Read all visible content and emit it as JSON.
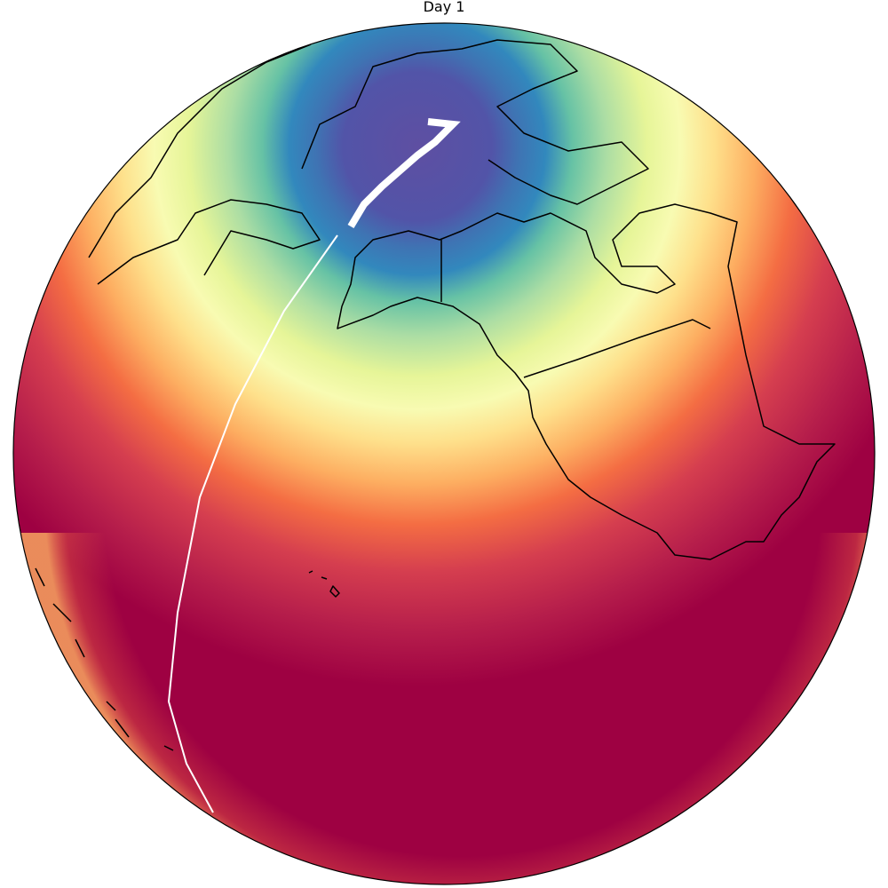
{
  "title": "Day 1"
}
